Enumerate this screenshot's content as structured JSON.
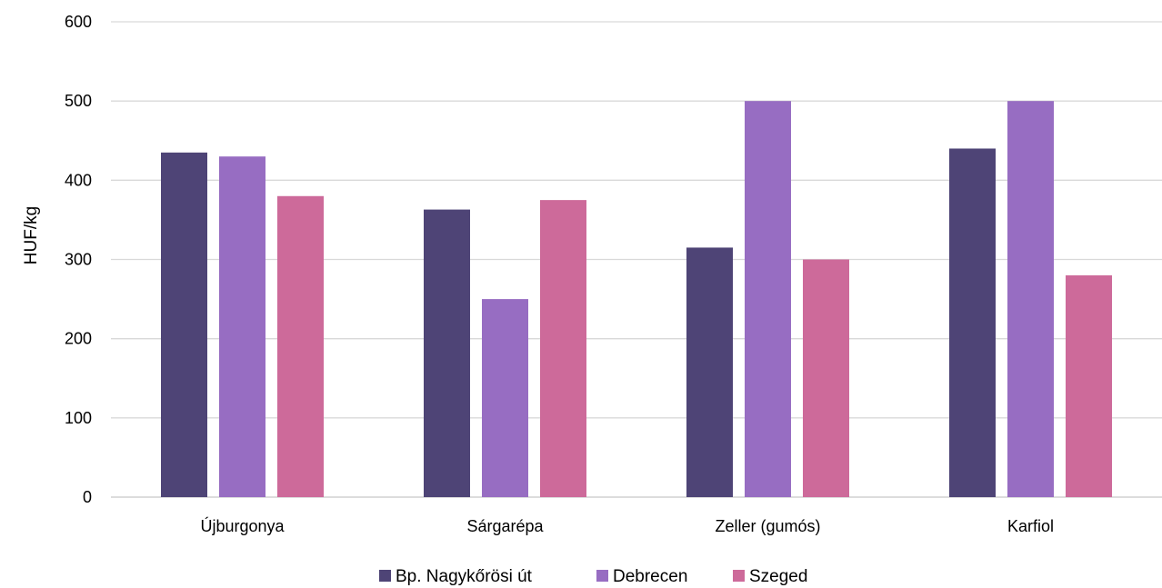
{
  "chart_data": {
    "type": "bar",
    "title": "",
    "xlabel": "",
    "ylabel": "HUF/kg",
    "ylim": [
      0,
      600
    ],
    "yticks": [
      0,
      100,
      200,
      300,
      400,
      500,
      600
    ],
    "categories": [
      "Újburgonya",
      "Sárgarépa",
      "Zeller (gumós)",
      "Karfiol"
    ],
    "series": [
      {
        "name": "Bp. Nagykőrösi út",
        "color": "#4e4476",
        "values": [
          435,
          363,
          315,
          440
        ]
      },
      {
        "name": "Debrecen",
        "color": "#976dc2",
        "values": [
          430,
          250,
          500,
          500
        ]
      },
      {
        "name": "Szeged",
        "color": "#cd6a9a",
        "values": [
          380,
          375,
          300,
          280
        ]
      }
    ],
    "grid": true,
    "legend": "bottom-center"
  }
}
